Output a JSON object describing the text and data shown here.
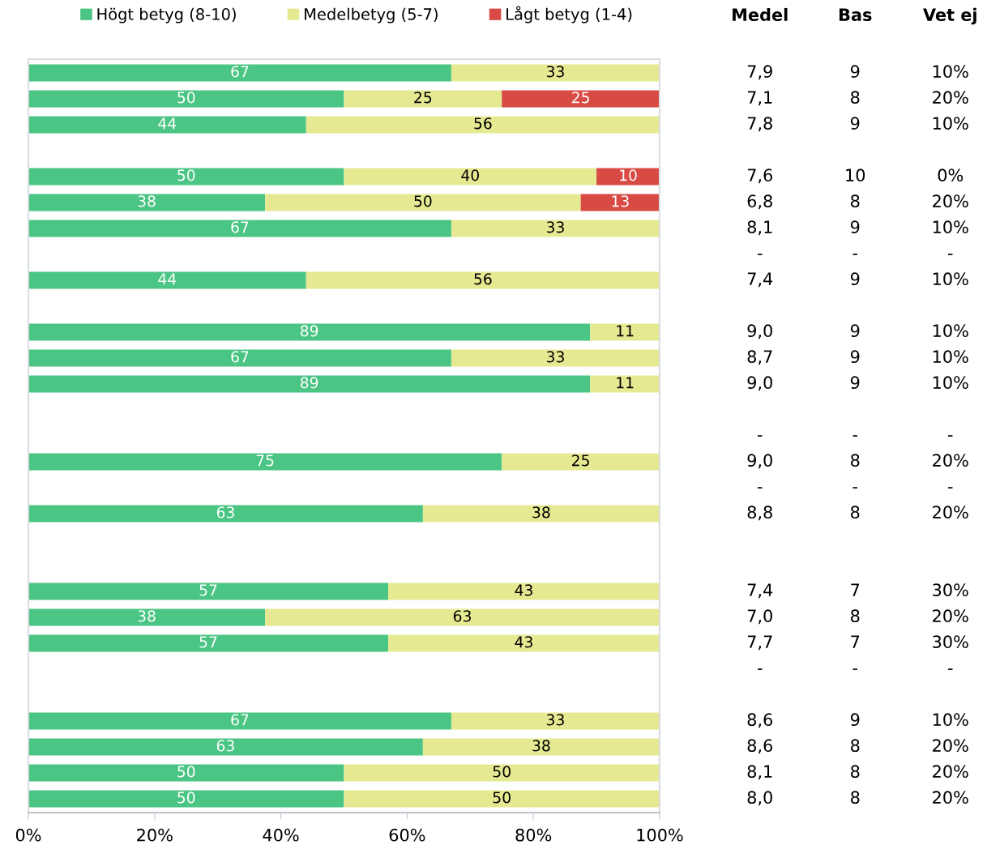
{
  "chart_data": [
    {
      "type": "bar",
      "orientation": "horizontal",
      "stacked": true,
      "categories": [
        null,
        null,
        null,
        null,
        null,
        null,
        null,
        null,
        null,
        null,
        null,
        null,
        null,
        null,
        null,
        null,
        null,
        null,
        null,
        null,
        null,
        null,
        null,
        null,
        null,
        null,
        null,
        null,
        null
      ],
      "series": [
        {
          "name": "Högt betyg (8-10)",
          "color": "#4bc584",
          "values": [
            67,
            50,
            44,
            null,
            50,
            37.5,
            67,
            null,
            44,
            null,
            89,
            67,
            89,
            null,
            null,
            75,
            null,
            62.5,
            null,
            null,
            57,
            37.5,
            57,
            null,
            null,
            67,
            62.5,
            50,
            50
          ],
          "value_labels": [
            "67",
            "50",
            "44",
            null,
            "50",
            "38",
            "67",
            null,
            "44",
            null,
            "89",
            "67",
            "89",
            null,
            null,
            "75",
            null,
            "63",
            null,
            null,
            "57",
            "38",
            "57",
            null,
            null,
            "67",
            "63",
            "50",
            "50"
          ]
        },
        {
          "name": "Medelbetyg (5-7)",
          "color": "#e5ea92",
          "values": [
            33,
            25,
            56,
            null,
            40,
            50,
            33,
            null,
            56,
            null,
            11,
            33,
            11,
            null,
            null,
            25,
            null,
            37.5,
            null,
            null,
            43,
            62.5,
            43,
            null,
            null,
            33,
            37.5,
            50,
            50
          ],
          "value_labels": [
            "33",
            "25",
            "56",
            null,
            "40",
            "50",
            "33",
            null,
            "56",
            null,
            "11",
            "33",
            "11",
            null,
            null,
            "25",
            null,
            "38",
            null,
            null,
            "43",
            "63",
            "43",
            null,
            null,
            "33",
            "38",
            "50",
            "50"
          ]
        },
        {
          "name": "Lågt betyg (1-4)",
          "color": "#d84a44",
          "values": [
            null,
            25,
            null,
            null,
            10,
            12.5,
            null,
            null,
            null,
            null,
            null,
            null,
            null,
            null,
            null,
            null,
            null,
            null,
            null,
            null,
            null,
            null,
            null,
            null,
            null,
            null,
            null,
            null,
            null
          ],
          "value_labels": [
            null,
            "25",
            null,
            null,
            "10",
            "13",
            null,
            null,
            null,
            null,
            null,
            null,
            null,
            null,
            null,
            null,
            null,
            null,
            null,
            null,
            null,
            null,
            null,
            null,
            null,
            null,
            null,
            null,
            null
          ]
        }
      ],
      "xlim": [
        0,
        100
      ],
      "xticks": [
        {
          "value": 0,
          "label": "0%"
        },
        {
          "value": 20,
          "label": "20%"
        },
        {
          "value": 40,
          "label": "40%"
        },
        {
          "value": 60,
          "label": "60%"
        },
        {
          "value": 80,
          "label": "80%"
        },
        {
          "value": 100,
          "label": "100%"
        }
      ],
      "tick_labels": "x",
      "legend": "top"
    },
    {
      "type": "other",
      "categories": [
        "Medel",
        "Bas",
        "Vet ej"
      ],
      "cell_labels": [
        [
          "7,9",
          "9",
          "10%"
        ],
        [
          "7,1",
          "8",
          "20%"
        ],
        [
          "7,8",
          "9",
          "10%"
        ],
        [
          null,
          null,
          null
        ],
        [
          "7,6",
          "10",
          "0%"
        ],
        [
          "6,8",
          "8",
          "20%"
        ],
        [
          "8,1",
          "9",
          "10%"
        ],
        [
          "-",
          "-",
          "-"
        ],
        [
          "7,4",
          "9",
          "10%"
        ],
        [
          null,
          null,
          null
        ],
        [
          "9,0",
          "9",
          "10%"
        ],
        [
          "8,7",
          "9",
          "10%"
        ],
        [
          "9,0",
          "9",
          "10%"
        ],
        [
          null,
          null,
          null
        ],
        [
          "-",
          "-",
          "-"
        ],
        [
          "9,0",
          "8",
          "20%"
        ],
        [
          "-",
          "-",
          "-"
        ],
        [
          "8,8",
          "8",
          "20%"
        ],
        [
          null,
          null,
          null
        ],
        [
          null,
          null,
          null
        ],
        [
          "7,4",
          "7",
          "30%"
        ],
        [
          "7,0",
          "8",
          "20%"
        ],
        [
          "7,7",
          "7",
          "30%"
        ],
        [
          "-",
          "-",
          "-"
        ],
        [
          null,
          null,
          null
        ],
        [
          "8,6",
          "9",
          "10%"
        ],
        [
          "8,6",
          "8",
          "20%"
        ],
        [
          "8,1",
          "8",
          "20%"
        ],
        [
          "8,0",
          "8",
          "20%"
        ]
      ]
    }
  ]
}
